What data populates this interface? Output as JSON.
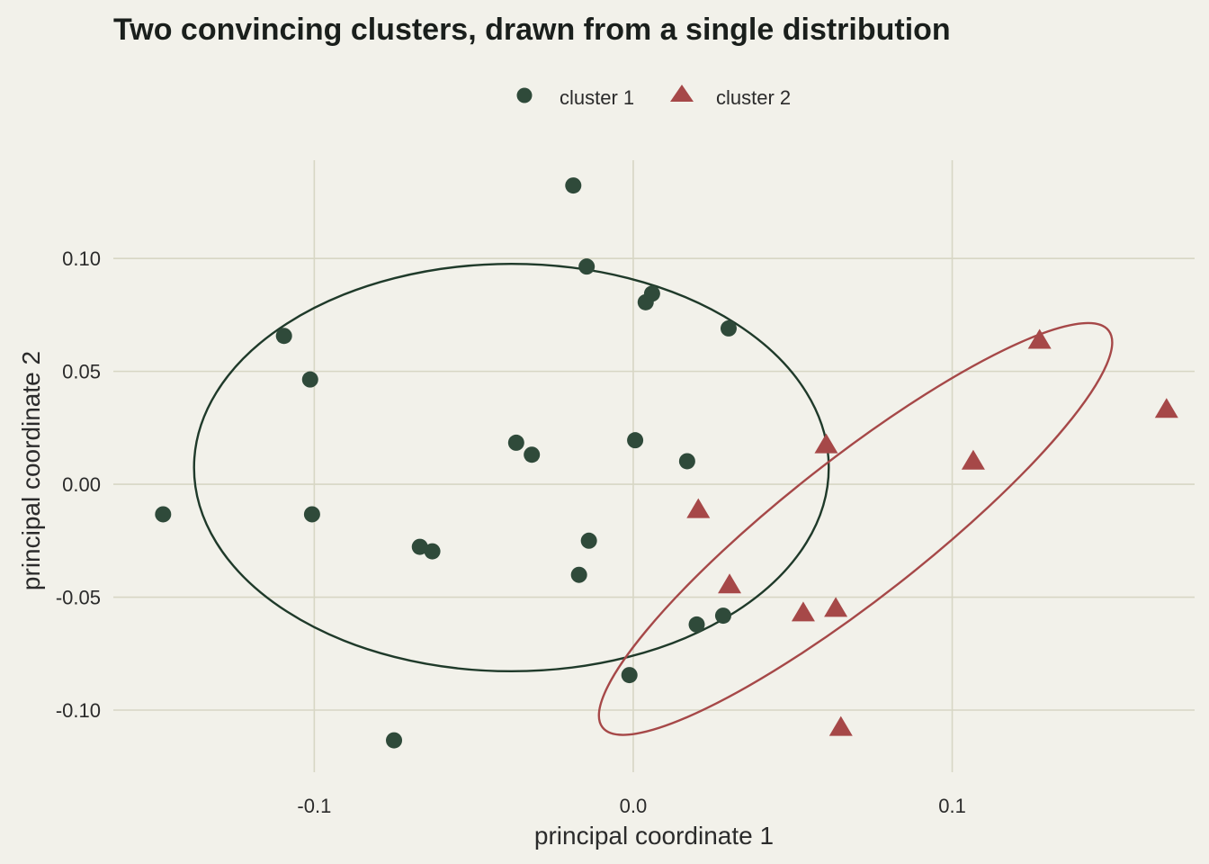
{
  "chart_data": {
    "type": "scatter",
    "title": "Two convincing clusters, drawn from a single distribution",
    "xlabel": "principal coordinate 1",
    "ylabel": "principal coordinate 2",
    "xlim": [
      -0.163,
      0.176
    ],
    "ylim": [
      -0.1275,
      0.1435
    ],
    "x_ticks": [
      -0.1,
      0.0,
      0.1
    ],
    "x_tick_labels": [
      "-0.1",
      "0.0",
      "0.1"
    ],
    "y_ticks": [
      -0.1,
      -0.05,
      0.0,
      0.05,
      0.1
    ],
    "y_tick_labels": [
      "-0.10",
      "-0.05",
      "0.00",
      "0.05",
      "0.10"
    ],
    "grid": true,
    "legend_position": "top-center",
    "series": [
      {
        "name": "cluster 1",
        "marker": "circle",
        "color": "#2f4a3a",
        "ellipse_color": "#1f3a2a",
        "points": [
          [
            -0.0188,
            0.1323
          ],
          [
            -0.0146,
            0.0964
          ],
          [
            0.0059,
            0.0844
          ],
          [
            0.0039,
            0.0806
          ],
          [
            0.0299,
            0.069
          ],
          [
            -0.1095,
            0.0657
          ],
          [
            -0.1013,
            0.0464
          ],
          [
            -0.0367,
            0.0184
          ],
          [
            0.0006,
            0.0195
          ],
          [
            -0.0318,
            0.0131
          ],
          [
            0.0169,
            0.0102
          ],
          [
            -0.1474,
            -0.0133
          ],
          [
            -0.1007,
            -0.0133
          ],
          [
            -0.0139,
            -0.025
          ],
          [
            -0.0669,
            -0.0277
          ],
          [
            -0.063,
            -0.0297
          ],
          [
            -0.017,
            -0.0401
          ],
          [
            0.0282,
            -0.0582
          ],
          [
            0.0199,
            -0.0621
          ],
          [
            -0.0012,
            -0.0845
          ],
          [
            -0.075,
            -0.1134
          ]
        ],
        "ellipse": {
          "cx": -0.0382,
          "cy": 0.0074,
          "rx": 0.0995,
          "ry": 0.0902,
          "angle": 0
        }
      },
      {
        "name": "cluster 2",
        "marker": "triangle",
        "color": "#a64848",
        "ellipse_color": "#a64848",
        "points": [
          [
            0.1274,
            0.064
          ],
          [
            0.1672,
            0.0334
          ],
          [
            0.0605,
            0.0177
          ],
          [
            0.1066,
            0.0105
          ],
          [
            0.0204,
            -0.011
          ],
          [
            0.0302,
            -0.0443
          ],
          [
            0.0635,
            -0.0547
          ],
          [
            0.0533,
            -0.0567
          ],
          [
            0.0651,
            -0.1074
          ]
        ],
        "ellipse": {
          "cx": 0.0697,
          "cy": -0.0198,
          "rx": 0.1008,
          "ry": 0.0308,
          "angle": 38.1
        }
      }
    ]
  }
}
